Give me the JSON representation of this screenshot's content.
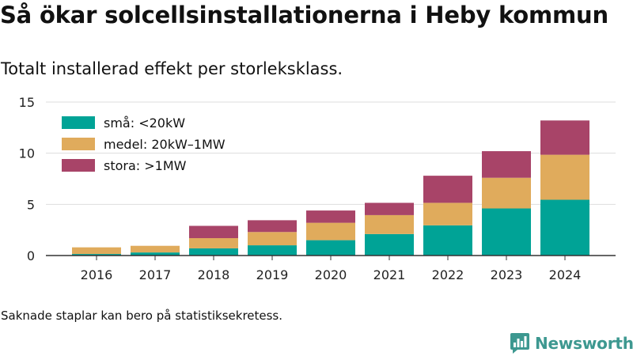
{
  "header": {
    "title": "Så ökar solcellsinstallationerna i Heby kommun",
    "subtitle": "Totalt installerad effekt per storleksklass."
  },
  "footer": {
    "note": "Saknade staplar kan bero på statistiksekretess.",
    "brand": "Newsworthy",
    "brand_color": "#3d9890",
    "brand_icon": "bar-chart-speech-bubble-icon"
  },
  "chart_data": {
    "type": "bar",
    "stacked": true,
    "title": "Så ökar solcellsinstallationerna i Heby kommun",
    "subtitle": "Totalt installerad effekt per storleksklass.",
    "xlabel": "",
    "ylabel": "",
    "categories": [
      "2016",
      "2017",
      "2018",
      "2019",
      "2020",
      "2021",
      "2022",
      "2023",
      "2024"
    ],
    "series": [
      {
        "name": "små: <20kW",
        "color": "#00a396",
        "values": [
          0.15,
          0.3,
          0.7,
          1.0,
          1.5,
          2.1,
          2.95,
          4.6,
          5.45
        ]
      },
      {
        "name": "medel: 20kW–1MW",
        "color": "#e0ab5c",
        "values": [
          0.65,
          0.65,
          1.0,
          1.3,
          1.7,
          1.85,
          2.2,
          3.0,
          4.4
        ]
      },
      {
        "name": "stora: >1MW",
        "color": "#a84468",
        "values": [
          0.0,
          0.0,
          1.2,
          1.15,
          1.2,
          1.2,
          2.65,
          2.6,
          3.35
        ]
      }
    ],
    "ylim": [
      0,
      15
    ],
    "yticks": [
      0,
      5,
      10,
      15
    ],
    "grid": true,
    "legend_position": "top-left"
  }
}
